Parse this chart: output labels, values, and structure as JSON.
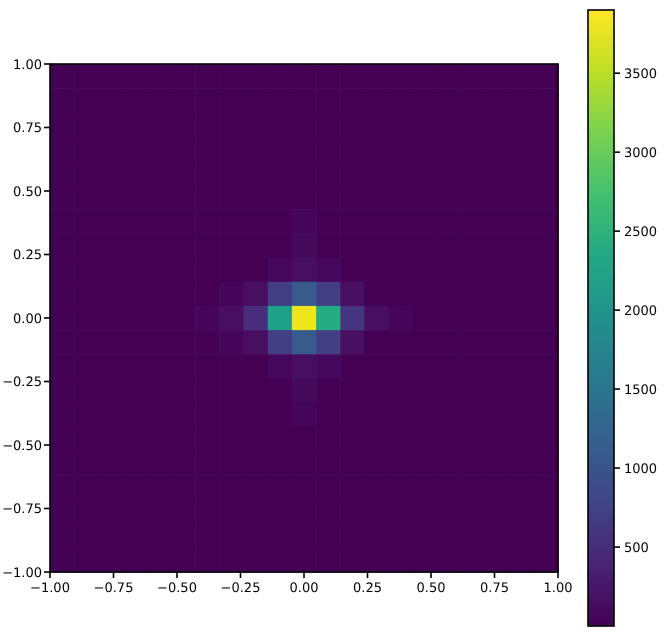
{
  "chart_data": {
    "type": "heatmap",
    "xlim": [
      -1,
      1
    ],
    "ylim": [
      -1,
      1
    ],
    "xticks": [
      {
        "value": -1,
        "label": "−1.00"
      },
      {
        "value": -0.75,
        "label": "−0.75"
      },
      {
        "value": -0.5,
        "label": "−0.50"
      },
      {
        "value": -0.25,
        "label": "−0.25"
      },
      {
        "value": 0,
        "label": "0.00"
      },
      {
        "value": 0.25,
        "label": "0.25"
      },
      {
        "value": 0.5,
        "label": "0.50"
      },
      {
        "value": 0.75,
        "label": "0.75"
      },
      {
        "value": 1,
        "label": "1.00"
      }
    ],
    "yticks": [
      {
        "value": -1,
        "label": "−1.00"
      },
      {
        "value": -0.75,
        "label": "−0.75"
      },
      {
        "value": -0.5,
        "label": "−0.50"
      },
      {
        "value": -0.25,
        "label": "−0.25"
      },
      {
        "value": 0,
        "label": "0.00"
      },
      {
        "value": 0.25,
        "label": "0.25"
      },
      {
        "value": 0.5,
        "label": "0.50"
      },
      {
        "value": 0.75,
        "label": "0.75"
      },
      {
        "value": 1,
        "label": "1.00"
      }
    ],
    "clim": [
      0,
      3900
    ],
    "cticks": [
      500,
      1000,
      1500,
      2000,
      2500,
      3000,
      3500
    ],
    "cells": [
      [
        0,
        0,
        0,
        0,
        0,
        0,
        0,
        0,
        0,
        0,
        0,
        0,
        0,
        0,
        0,
        0,
        0,
        0,
        0,
        0,
        0
      ],
      [
        0,
        0,
        0,
        0,
        0,
        0,
        0,
        0,
        0,
        0,
        0,
        0,
        0,
        0,
        0,
        0,
        0,
        0,
        0,
        0,
        0
      ],
      [
        0,
        0,
        0,
        0,
        0,
        0,
        0,
        0,
        0,
        0,
        0,
        0,
        0,
        0,
        0,
        0,
        0,
        0,
        0,
        0,
        0
      ],
      [
        0,
        0,
        0,
        0,
        0,
        0,
        0,
        0,
        0,
        0,
        0,
        0,
        0,
        0,
        0,
        0,
        0,
        0,
        0,
        0,
        0
      ],
      [
        0,
        0,
        0,
        0,
        0,
        0,
        0,
        0,
        0,
        0,
        0,
        0,
        0,
        0,
        0,
        0,
        0,
        0,
        0,
        0,
        0
      ],
      [
        0,
        0,
        0,
        0,
        0,
        0,
        0,
        0,
        0,
        0,
        0,
        0,
        0,
        0,
        0,
        0,
        0,
        0,
        0,
        0,
        0
      ],
      [
        0,
        0,
        0,
        0,
        0,
        0,
        0,
        0,
        0,
        0,
        60,
        0,
        0,
        0,
        0,
        0,
        0,
        0,
        0,
        0,
        0
      ],
      [
        0,
        0,
        0,
        0,
        0,
        0,
        0,
        0,
        0,
        0,
        100,
        0,
        0,
        0,
        0,
        0,
        0,
        0,
        0,
        0,
        0
      ],
      [
        0,
        0,
        0,
        0,
        0,
        0,
        0,
        0,
        0,
        80,
        150,
        80,
        0,
        0,
        0,
        0,
        0,
        0,
        0,
        0,
        0
      ],
      [
        0,
        0,
        0,
        0,
        0,
        0,
        0,
        50,
        150,
        700,
        1100,
        700,
        150,
        0,
        0,
        0,
        0,
        0,
        0,
        0,
        0
      ],
      [
        0,
        0,
        0,
        0,
        0,
        0,
        50,
        150,
        500,
        2200,
        3800,
        2400,
        600,
        150,
        50,
        0,
        0,
        0,
        0,
        0,
        0
      ],
      [
        0,
        0,
        0,
        0,
        0,
        0,
        0,
        50,
        150,
        700,
        1100,
        700,
        150,
        0,
        0,
        0,
        0,
        0,
        0,
        0,
        0
      ],
      [
        0,
        0,
        0,
        0,
        0,
        0,
        0,
        0,
        0,
        80,
        150,
        80,
        0,
        0,
        0,
        0,
        0,
        0,
        0,
        0,
        0
      ],
      [
        0,
        0,
        0,
        0,
        0,
        0,
        0,
        0,
        0,
        0,
        100,
        0,
        0,
        0,
        0,
        0,
        0,
        0,
        0,
        0,
        0
      ],
      [
        0,
        0,
        0,
        0,
        0,
        0,
        0,
        0,
        0,
        0,
        60,
        0,
        0,
        0,
        0,
        0,
        0,
        0,
        0,
        0,
        0
      ],
      [
        0,
        0,
        0,
        0,
        0,
        0,
        0,
        0,
        0,
        0,
        0,
        0,
        0,
        0,
        0,
        0,
        0,
        0,
        0,
        0,
        0
      ],
      [
        0,
        0,
        0,
        0,
        0,
        0,
        0,
        0,
        0,
        0,
        0,
        0,
        0,
        0,
        0,
        0,
        0,
        0,
        0,
        0,
        0
      ],
      [
        0,
        0,
        0,
        0,
        0,
        0,
        0,
        0,
        0,
        0,
        0,
        0,
        0,
        0,
        0,
        0,
        0,
        0,
        0,
        0,
        0
      ],
      [
        0,
        0,
        0,
        0,
        0,
        0,
        0,
        0,
        0,
        0,
        0,
        0,
        0,
        0,
        0,
        0,
        0,
        0,
        0,
        0,
        0
      ],
      [
        0,
        0,
        0,
        0,
        0,
        0,
        0,
        0,
        0,
        0,
        0,
        0,
        0,
        0,
        0,
        0,
        0,
        0,
        0,
        0,
        0
      ],
      [
        0,
        0,
        0,
        0,
        0,
        0,
        0,
        0,
        0,
        0,
        0,
        0,
        0,
        0,
        0,
        0,
        0,
        0,
        0,
        0,
        0
      ]
    ]
  }
}
